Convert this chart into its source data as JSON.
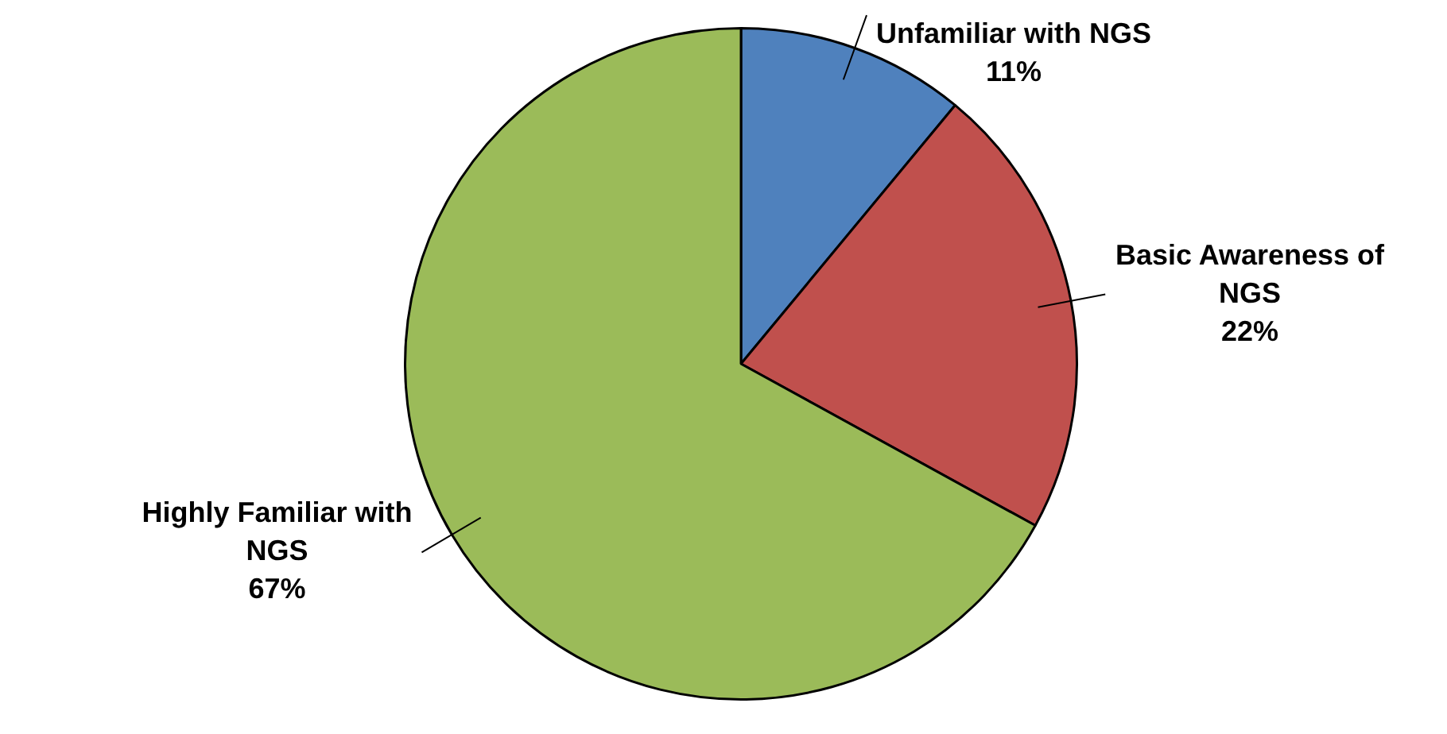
{
  "chart_data": {
    "type": "pie",
    "categories": [
      "Unfamiliar with NGS",
      "Basic Awareness of NGS",
      "Highly Familiar with NGS"
    ],
    "values": [
      11,
      22,
      67
    ],
    "colors": [
      "#4f81bd",
      "#c0504d",
      "#9bbb59"
    ],
    "value_labels": [
      "11%",
      "22%",
      "67%"
    ],
    "legend": false
  }
}
